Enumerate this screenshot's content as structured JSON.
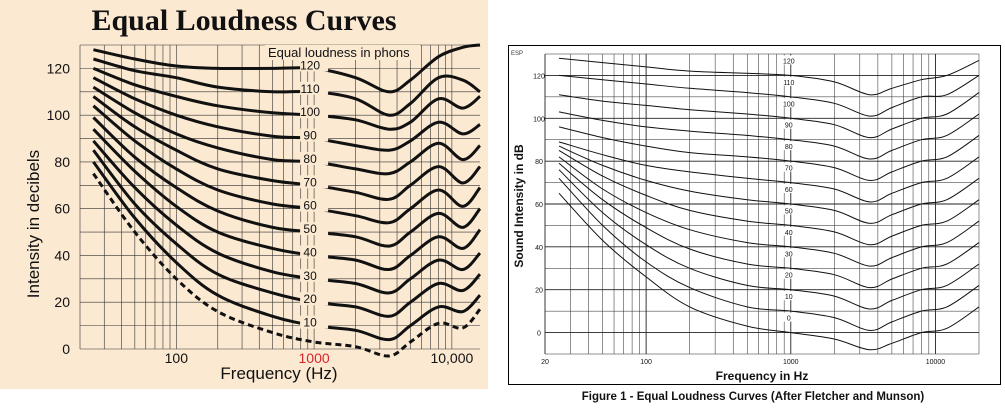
{
  "chart_data": [
    {
      "type": "line",
      "title": "Equal Loudness Curves",
      "xlabel": "Frequency (Hz)",
      "ylabel": "Intensity in decibels",
      "xscale": "log",
      "xlim": [
        20,
        16000
      ],
      "ylim": [
        0,
        130
      ],
      "x_ticks": [
        "100",
        "1000",
        "10,000"
      ],
      "highlight_tick": "1000",
      "highlight_color": "#d8262c",
      "y_ticks": [
        "0",
        "20",
        "40",
        "60",
        "80",
        "100",
        "120"
      ],
      "annotation": "Equal loudness in phons",
      "curve_labels": [
        "120",
        "110",
        "100",
        "90",
        "80",
        "70",
        "60",
        "50",
        "40",
        "30",
        "20",
        "10"
      ],
      "background_color": "#fbe9d2",
      "x": [
        25,
        50,
        100,
        200,
        500,
        1000,
        2000,
        3500,
        5000,
        8000,
        12000,
        16000
      ],
      "series": [
        {
          "name": "120",
          "values": [
            128,
            124,
            121,
            120,
            120,
            120,
            116,
            110,
            115,
            125,
            129,
            130
          ]
        },
        {
          "name": "110",
          "values": [
            124,
            119,
            116,
            112,
            110,
            110,
            107,
            100,
            105,
            116,
            115,
            110
          ]
        },
        {
          "name": "100",
          "values": [
            120,
            113,
            108,
            104,
            101,
            100,
            98,
            94,
            97,
            107,
            103,
            108
          ]
        },
        {
          "name": "90",
          "values": [
            116,
            107,
            100,
            95,
            91,
            90,
            87,
            85,
            89,
            97,
            92,
            96
          ]
        },
        {
          "name": "80",
          "values": [
            112,
            101,
            92,
            86,
            81,
            80,
            77,
            75,
            80,
            88,
            81,
            87
          ]
        },
        {
          "name": "70",
          "values": [
            108,
            95,
            85,
            77,
            72,
            70,
            67,
            64,
            70,
            78,
            71,
            78
          ]
        },
        {
          "name": "60",
          "values": [
            104,
            89,
            77,
            68,
            62,
            60,
            57,
            54,
            60,
            68,
            61,
            69
          ]
        },
        {
          "name": "50",
          "values": [
            99,
            82,
            69,
            59,
            52,
            50,
            48,
            44,
            50,
            58,
            52,
            60
          ]
        },
        {
          "name": "40",
          "values": [
            94,
            76,
            61,
            50,
            43,
            40,
            38,
            34,
            40,
            48,
            43,
            51
          ]
        },
        {
          "name": "30",
          "values": [
            89,
            69,
            53,
            41,
            33,
            30,
            28,
            24,
            30,
            38,
            34,
            41
          ]
        },
        {
          "name": "20",
          "values": [
            85,
            62,
            45,
            32,
            24,
            20,
            18,
            14,
            20,
            28,
            25,
            32
          ]
        },
        {
          "name": "10",
          "values": [
            80,
            56,
            37,
            23,
            14,
            10,
            8,
            4,
            10,
            18,
            16,
            23
          ]
        },
        {
          "name": "",
          "dashed": true,
          "values": [
            75,
            50,
            30,
            16,
            7,
            3,
            1,
            -3,
            3,
            11,
            9,
            17
          ]
        }
      ]
    },
    {
      "type": "line",
      "xlabel": "Frequency in Hz",
      "ylabel": "Sound Intensity in dB",
      "caption": "Figure 1 - Equal Loudness Curves (After Fletcher and Munson)",
      "corner_label": "ESP",
      "xscale": "log",
      "xlim": [
        20,
        20000
      ],
      "ylim": [
        -10,
        130
      ],
      "x_ticks": [
        "20",
        "100",
        "1000",
        "10000"
      ],
      "y_ticks": [
        "0",
        "20",
        "40",
        "60",
        "80",
        "100",
        "120"
      ],
      "curve_labels": [
        "120",
        "110",
        "100",
        "90",
        "80",
        "70",
        "60",
        "50",
        "40",
        "30",
        "20",
        "10",
        "0"
      ],
      "x": [
        25,
        50,
        100,
        200,
        500,
        1000,
        2000,
        3500,
        5000,
        8000,
        12000,
        20000
      ],
      "series": [
        {
          "name": "120",
          "values": [
            128,
            126,
            124,
            122,
            121,
            120,
            117,
            111,
            114,
            118,
            120,
            127
          ]
        },
        {
          "name": "110",
          "values": [
            120,
            118,
            116,
            114,
            112,
            110,
            107,
            101,
            105,
            110,
            111,
            120
          ]
        },
        {
          "name": "100",
          "values": [
            111,
            108,
            106,
            104,
            102,
            100,
            97,
            91,
            95,
            100,
            102,
            112
          ]
        },
        {
          "name": "90",
          "values": [
            103,
            99,
            96,
            94,
            92,
            90,
            87,
            81,
            85,
            90,
            92,
            102
          ]
        },
        {
          "name": "80",
          "values": [
            96,
            91,
            87,
            84,
            82,
            80,
            77,
            71,
            75,
            80,
            82,
            92
          ]
        },
        {
          "name": "70",
          "values": [
            89,
            83,
            78,
            75,
            72,
            70,
            67,
            61,
            65,
            70,
            72,
            82
          ]
        },
        {
          "name": "60",
          "values": [
            87,
            78,
            71,
            66,
            62,
            60,
            57,
            51,
            55,
            60,
            62,
            72
          ]
        },
        {
          "name": "50",
          "values": [
            85,
            73,
            64,
            57,
            52,
            50,
            47,
            41,
            45,
            50,
            52,
            62
          ]
        },
        {
          "name": "40",
          "values": [
            82,
            67,
            56,
            48,
            42,
            40,
            37,
            31,
            35,
            40,
            42,
            52
          ]
        },
        {
          "name": "30",
          "values": [
            79,
            62,
            49,
            39,
            32,
            30,
            27,
            21,
            25,
            30,
            32,
            42
          ]
        },
        {
          "name": "20",
          "values": [
            76,
            56,
            41,
            30,
            22,
            20,
            17,
            11,
            15,
            20,
            22,
            32
          ]
        },
        {
          "name": "10",
          "values": [
            72,
            50,
            33,
            21,
            12,
            10,
            7,
            1,
            5,
            10,
            12,
            22
          ]
        },
        {
          "name": "0",
          "values": [
            65,
            43,
            26,
            12,
            3,
            0,
            -3,
            -8,
            -5,
            0,
            2,
            12
          ]
        }
      ]
    }
  ]
}
